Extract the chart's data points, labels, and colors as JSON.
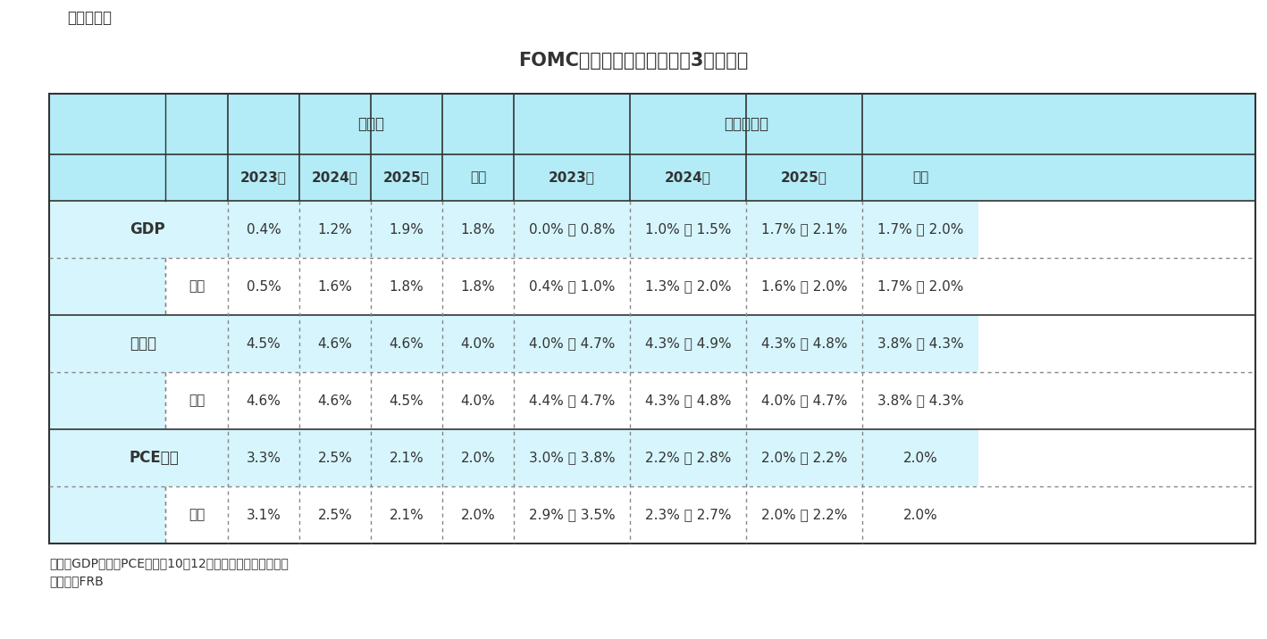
{
  "title": "FOMC参加者の経済見通し（3月会合）",
  "label_top_left": "（図表１）",
  "note1": "（注）GDPとコアPCE価格は10－12月期の前年同期比伸び率",
  "note2": "（資料）FRB",
  "header_row1_left": [
    "",
    "中央値",
    "",
    "",
    "",
    "中央傾向値"
  ],
  "header_row2": [
    "",
    "",
    "2023年",
    "2024年",
    "2025年",
    "長期",
    "2023年",
    "2024年",
    "2025年",
    "長期"
  ],
  "col_header_group1": "中央値",
  "col_header_group2": "中央傾向値",
  "rows": [
    {
      "label": "GDP",
      "sub_label": "",
      "is_main": true,
      "median": [
        "0.4%",
        "1.2%",
        "1.9%",
        "1.8%"
      ],
      "central": [
        "0.0% － 0.8%",
        "1.0% － 1.5%",
        "1.7% － 2.1%",
        "1.7% － 2.0%"
      ]
    },
    {
      "label": "",
      "sub_label": "前回",
      "is_main": false,
      "median": [
        "0.5%",
        "1.6%",
        "1.8%",
        "1.8%"
      ],
      "central": [
        "0.4% － 1.0%",
        "1.3% － 2.0%",
        "1.6% － 2.0%",
        "1.7% － 2.0%"
      ]
    },
    {
      "label": "失業率",
      "sub_label": "",
      "is_main": true,
      "median": [
        "4.5%",
        "4.6%",
        "4.6%",
        "4.0%"
      ],
      "central": [
        "4.0% － 4.7%",
        "4.3% － 4.9%",
        "4.3% － 4.8%",
        "3.8% － 4.3%"
      ]
    },
    {
      "label": "",
      "sub_label": "前回",
      "is_main": false,
      "median": [
        "4.6%",
        "4.6%",
        "4.5%",
        "4.0%"
      ],
      "central": [
        "4.4% － 4.7%",
        "4.3% － 4.8%",
        "4.0% － 4.7%",
        "3.8% － 4.3%"
      ]
    },
    {
      "label": "PCE価格",
      "sub_label": "",
      "is_main": true,
      "median": [
        "3.3%",
        "2.5%",
        "2.1%",
        "2.0%"
      ],
      "central": [
        "3.0% － 3.8%",
        "2.2% － 2.8%",
        "2.0% － 2.2%",
        "2.0%"
      ]
    },
    {
      "label": "",
      "sub_label": "前回",
      "is_main": false,
      "median": [
        "3.1%",
        "2.5%",
        "2.1%",
        "2.0%"
      ],
      "central": [
        "2.9% － 3.5%",
        "2.3% － 2.7%",
        "2.0% － 2.2%",
        "2.0%"
      ]
    }
  ],
  "bg_color_header": "#b3ecf7",
  "bg_color_main": "#d6f5fc",
  "bg_color_sub": "#ffffff",
  "border_color_main": "#333333",
  "border_color_dotted": "#888888",
  "text_color": "#333333",
  "title_fontsize": 15,
  "label_fontsize": 11,
  "cell_fontsize": 11
}
